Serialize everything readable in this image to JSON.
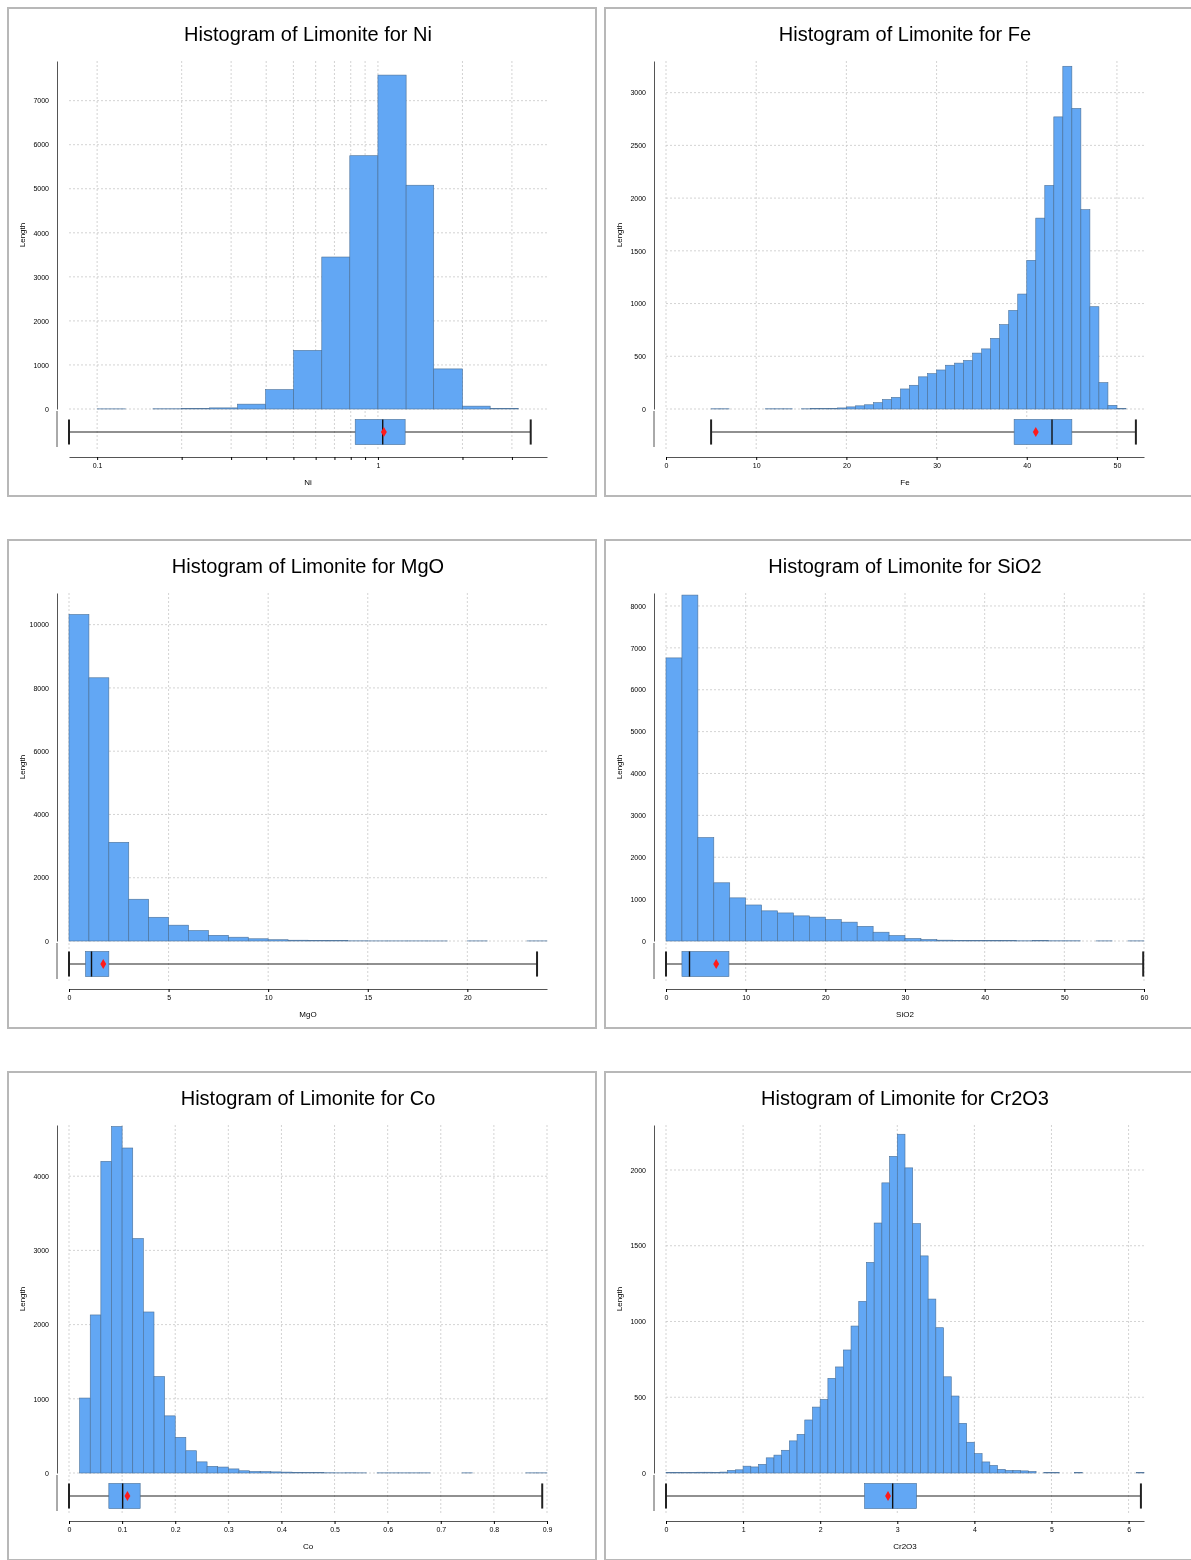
{
  "chart_data": [
    {
      "type": "histogram",
      "title": "Histogram of Limonite for Ni",
      "ylabel": "Length",
      "log": "x",
      "grid": true,
      "tick_labels": "y",
      "color": "#62a7f4",
      "bins": [
        0.1,
        0.126,
        0.158,
        0.2,
        0.251,
        0.316,
        0.398,
        0.501,
        0.631,
        0.794,
        1,
        1.26,
        1.58,
        2,
        2.51,
        3.16
      ],
      "values": [
        3,
        0,
        5,
        10,
        25,
        110,
        440,
        1330,
        3450,
        5750,
        7580,
        5080,
        910,
        65,
        15
      ],
      "xlim": [
        0.0794,
        4
      ],
      "xticks": [
        0.1,
        {
          "value": 0.2,
          "label": null
        },
        {
          "value": 0.3,
          "label": null
        },
        {
          "value": 0.4,
          "label": null
        },
        {
          "value": 0.5,
          "label": null
        },
        {
          "value": 0.6,
          "label": null
        },
        {
          "value": 0.7,
          "label": null
        },
        {
          "value": 0.8,
          "label": null
        },
        {
          "value": 0.9,
          "label": null
        },
        1,
        {
          "value": 2,
          "label": null
        },
        {
          "value": 3,
          "label": null
        }
      ],
      "ylim": [
        0,
        7900
      ],
      "yticks": [
        0,
        1000,
        2000,
        3000,
        4000,
        5000,
        6000,
        7000
      ]
    },
    {
      "type": "box",
      "orientation": "horizontal",
      "xlabel": "Ni",
      "log": "x",
      "grid": "x",
      "tick_labels": "x",
      "color": "#62a7f4",
      "categories": [
        null
      ],
      "boxes": [
        {
          "low": 0.0794,
          "q1": 0.83,
          "median": 1.04,
          "q3": 1.25,
          "high": 3.5,
          "mean": 1.05
        }
      ],
      "xlim": [
        0.0794,
        4
      ],
      "xticks": [
        0.1,
        {
          "value": 0.2,
          "label": null
        },
        {
          "value": 0.3,
          "label": null
        },
        {
          "value": 0.4,
          "label": null
        },
        {
          "value": 0.5,
          "label": null
        },
        {
          "value": 0.6,
          "label": null
        },
        {
          "value": 0.7,
          "label": null
        },
        {
          "value": 0.8,
          "label": null
        },
        {
          "value": 0.9,
          "label": null
        },
        1,
        {
          "value": 2,
          "label": null
        },
        {
          "value": 3,
          "label": null
        }
      ]
    },
    {
      "type": "histogram",
      "title": "Histogram of Limonite for Fe",
      "ylabel": "Length",
      "grid": true,
      "tick_labels": "y",
      "color": "#62a7f4",
      "bins": [
        5,
        6,
        7,
        8,
        9,
        10,
        11,
        12,
        13,
        14,
        15,
        16,
        17,
        18,
        19,
        20,
        21,
        22,
        23,
        24,
        25,
        26,
        27,
        28,
        29,
        30,
        31,
        32,
        33,
        34,
        35,
        36,
        37,
        38,
        39,
        40,
        41,
        42,
        43,
        44,
        45,
        46,
        47,
        48,
        49,
        50,
        51
      ],
      "values": [
        2,
        2,
        0,
        0,
        0,
        0,
        2,
        2,
        2,
        0,
        2,
        5,
        3,
        5,
        10,
        20,
        30,
        40,
        60,
        90,
        110,
        190,
        225,
        305,
        335,
        370,
        415,
        435,
        460,
        530,
        570,
        670,
        800,
        935,
        1090,
        1410,
        1810,
        2120,
        2770,
        3250,
        2850,
        1890,
        970,
        250,
        35,
        3
      ],
      "xlim": [
        0,
        53
      ],
      "xticks": [
        0,
        10,
        20,
        30,
        40,
        50
      ],
      "ylim": [
        0,
        3300
      ],
      "yticks": [
        0,
        500,
        1000,
        1500,
        2000,
        2500,
        3000
      ]
    },
    {
      "type": "box",
      "orientation": "horizontal",
      "xlabel": "Fe",
      "grid": "x",
      "tick_labels": "x",
      "color": "#62a7f4",
      "categories": [
        null
      ],
      "boxes": [
        {
          "low": 5,
          "q1": 38.6,
          "median": 42.8,
          "q3": 45,
          "high": 52.1,
          "mean": 41
        }
      ],
      "xlim": [
        0,
        53
      ],
      "xticks": [
        0,
        10,
        20,
        30,
        40,
        50
      ]
    },
    {
      "type": "histogram",
      "title": "Histogram of Limonite for MgO",
      "ylabel": "Length",
      "grid": true,
      "tick_labels": "y",
      "color": "#62a7f4",
      "bins": [
        0,
        1,
        2,
        3,
        4,
        5,
        6,
        7,
        8,
        9,
        10,
        11,
        12,
        13,
        14,
        15,
        16,
        17,
        18,
        19,
        20,
        21,
        22,
        23,
        24
      ],
      "values": [
        10320,
        8320,
        3120,
        1320,
        750,
        500,
        330,
        180,
        120,
        70,
        40,
        25,
        15,
        10,
        5,
        3,
        3,
        3,
        2,
        0,
        3,
        0,
        0,
        3
      ],
      "xlim": [
        0,
        24
      ],
      "xticks": [
        0,
        5,
        10,
        15,
        20
      ],
      "ylim": [
        0,
        11000
      ],
      "yticks": [
        0,
        2000,
        4000,
        6000,
        8000,
        10000
      ]
    },
    {
      "type": "box",
      "orientation": "horizontal",
      "xlabel": "MgO",
      "grid": "x",
      "tick_labels": "x",
      "color": "#62a7f4",
      "categories": [
        null
      ],
      "boxes": [
        {
          "low": 0,
          "q1": 0.83,
          "median": 1.13,
          "q3": 2,
          "high": 23.5,
          "mean": 1.72
        }
      ],
      "xlim": [
        0,
        24
      ],
      "xticks": [
        0,
        5,
        10,
        15,
        20
      ]
    },
    {
      "type": "histogram",
      "title": "Histogram of Limonite for SiO2",
      "ylabel": "Length",
      "grid": true,
      "tick_labels": "y",
      "color": "#62a7f4",
      "bins": [
        0,
        2,
        4,
        6,
        8,
        10,
        12,
        14,
        16,
        18,
        20,
        22,
        24,
        26,
        28,
        30,
        32,
        34,
        36,
        38,
        40,
        42,
        44,
        46,
        48,
        50,
        52,
        54,
        56,
        58,
        60
      ],
      "values": [
        6760,
        8260,
        2470,
        1390,
        1030,
        860,
        720,
        670,
        600,
        570,
        510,
        450,
        350,
        210,
        130,
        60,
        35,
        20,
        15,
        12,
        10,
        10,
        5,
        8,
        5,
        5,
        0,
        3,
        0,
        3
      ],
      "xlim": [
        0,
        60
      ],
      "xticks": [
        0,
        10,
        20,
        30,
        40,
        50,
        60
      ],
      "ylim": [
        0,
        8310
      ],
      "yticks": [
        0,
        1000,
        2000,
        3000,
        4000,
        5000,
        6000,
        7000,
        8000
      ]
    },
    {
      "type": "box",
      "orientation": "horizontal",
      "xlabel": "SiO2",
      "grid": "x",
      "tick_labels": "x",
      "color": "#62a7f4",
      "categories": [
        null
      ],
      "boxes": [
        {
          "low": 0,
          "q1": 2,
          "median": 2.95,
          "q3": 7.9,
          "high": 59.9,
          "mean": 6.3
        }
      ],
      "xlim": [
        0,
        60
      ],
      "xticks": [
        0,
        10,
        20,
        30,
        40,
        50,
        60
      ]
    },
    {
      "type": "histogram",
      "title": "Histogram of Limonite for Co",
      "ylabel": "Length",
      "grid": true,
      "tick_labels": "y",
      "color": "#62a7f4",
      "bins": [
        0.02,
        0.04,
        0.06,
        0.08,
        0.1,
        0.12,
        0.14,
        0.16,
        0.18,
        0.2,
        0.22,
        0.24,
        0.26,
        0.28,
        0.3,
        0.32,
        0.34,
        0.36,
        0.38,
        0.4,
        0.42,
        0.44,
        0.46,
        0.48,
        0.5,
        0.52,
        0.54,
        0.56,
        0.58,
        0.6,
        0.62,
        0.64,
        0.66,
        0.68,
        0.7,
        0.72,
        0.74,
        0.76,
        0.78,
        0.8,
        0.82,
        0.84,
        0.86,
        0.88,
        0.9
      ],
      "values": [
        1010,
        2130,
        4200,
        4670,
        4380,
        3160,
        2170,
        1300,
        770,
        480,
        300,
        150,
        90,
        80,
        55,
        30,
        20,
        18,
        15,
        12,
        8,
        5,
        5,
        3,
        2,
        3,
        2,
        0,
        2,
        2,
        2,
        2,
        2,
        0,
        0,
        0,
        2,
        0,
        0,
        0,
        0,
        0,
        2,
        2
      ],
      "xlim": [
        0,
        0.9
      ],
      "xticks": [
        0,
        0.1,
        0.2,
        0.3,
        0.4,
        0.5,
        0.6,
        0.7,
        0.8,
        0.9
      ],
      "ylim": [
        0,
        4690
      ],
      "yticks": [
        0,
        1000,
        2000,
        3000,
        4000
      ]
    },
    {
      "type": "box",
      "orientation": "horizontal",
      "xlabel": "Co",
      "grid": "x",
      "tick_labels": "x",
      "color": "#62a7f4",
      "categories": [
        null
      ],
      "boxes": [
        {
          "low": 0,
          "q1": 0.075,
          "median": 0.101,
          "q3": 0.134,
          "high": 0.891,
          "mean": 0.11
        }
      ],
      "xlim": [
        0,
        0.9
      ],
      "xticks": [
        0,
        0.1,
        0.2,
        0.3,
        0.4,
        0.5,
        0.6,
        0.7,
        0.8,
        0.9
      ]
    },
    {
      "type": "histogram",
      "title": "Histogram of Limonite for Cr2O3",
      "ylabel": "Length",
      "grid": true,
      "tick_labels": "y",
      "color": "#62a7f4",
      "bins": [
        0,
        0.1,
        0.2,
        0.3,
        0.4,
        0.5,
        0.6,
        0.7,
        0.8,
        0.9,
        1,
        1.1,
        1.2,
        1.3,
        1.4,
        1.5,
        1.6,
        1.7,
        1.8,
        1.9,
        2,
        2.1,
        2.2,
        2.3,
        2.4,
        2.5,
        2.6,
        2.7,
        2.8,
        2.9,
        3,
        3.1,
        3.2,
        3.3,
        3.4,
        3.5,
        3.6,
        3.7,
        3.8,
        3.9,
        4,
        4.1,
        4.2,
        4.3,
        4.4,
        4.5,
        4.6,
        4.7,
        4.8,
        4.9,
        5,
        5.1,
        5.2,
        5.3,
        5.4,
        5.5,
        5.6,
        5.7,
        5.8,
        5.9,
        6,
        6.1,
        6.2
      ],
      "values": [
        3,
        4,
        2,
        2,
        5,
        5,
        4,
        6,
        17,
        21,
        45,
        40,
        57,
        100,
        118,
        150,
        212,
        255,
        350,
        435,
        485,
        625,
        700,
        812,
        970,
        1133,
        1390,
        1650,
        1915,
        2090,
        2236,
        2014,
        1646,
        1433,
        1148,
        959,
        635,
        508,
        328,
        203,
        128,
        73,
        50,
        24,
        17,
        17,
        14,
        10,
        0,
        3,
        3,
        0,
        0,
        2,
        0,
        0,
        0,
        0,
        0,
        0,
        0,
        2
      ],
      "xlim": [
        0,
        6.2
      ],
      "xticks": [
        0,
        1,
        2,
        3,
        4,
        5,
        6
      ],
      "ylim": [
        0,
        2297
      ],
      "yticks": [
        0,
        500,
        1000,
        1500,
        2000
      ]
    },
    {
      "type": "box",
      "orientation": "horizontal",
      "xlabel": "Cr2O3",
      "grid": "x",
      "tick_labels": "x",
      "color": "#62a7f4",
      "categories": [
        null
      ],
      "boxes": [
        {
          "low": 0,
          "q1": 2.575,
          "median": 2.94,
          "q3": 3.25,
          "high": 6.16,
          "mean": 2.88
        }
      ],
      "xlim": [
        0,
        6.2
      ],
      "xticks": [
        0,
        1,
        2,
        3,
        4,
        5,
        6
      ]
    }
  ]
}
